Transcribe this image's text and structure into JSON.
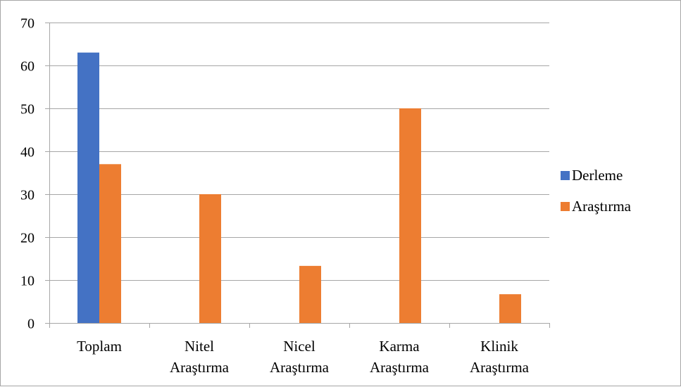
{
  "chart_data": {
    "type": "bar",
    "categories": [
      [
        "Toplam"
      ],
      [
        "Nitel",
        "Araştırma"
      ],
      [
        "Nicel",
        "Araştırma"
      ],
      [
        "Karma",
        "Araştırma"
      ],
      [
        "Klinik",
        "Araştırma"
      ]
    ],
    "series": [
      {
        "name": "Derleme",
        "color": "#4472c4",
        "values": [
          63,
          0,
          0,
          0,
          0
        ]
      },
      {
        "name": "Araştırma",
        "color": "#ed7d31",
        "values": [
          37,
          30,
          13.3,
          50,
          6.7
        ]
      }
    ],
    "ylim": [
      0,
      70
    ],
    "yticks": [
      0,
      10,
      20,
      30,
      40,
      50,
      60,
      70
    ],
    "grid": true,
    "gridColor": "#a6a6a6",
    "legend": "right",
    "title": "",
    "xlabel": "",
    "ylabel": ""
  }
}
